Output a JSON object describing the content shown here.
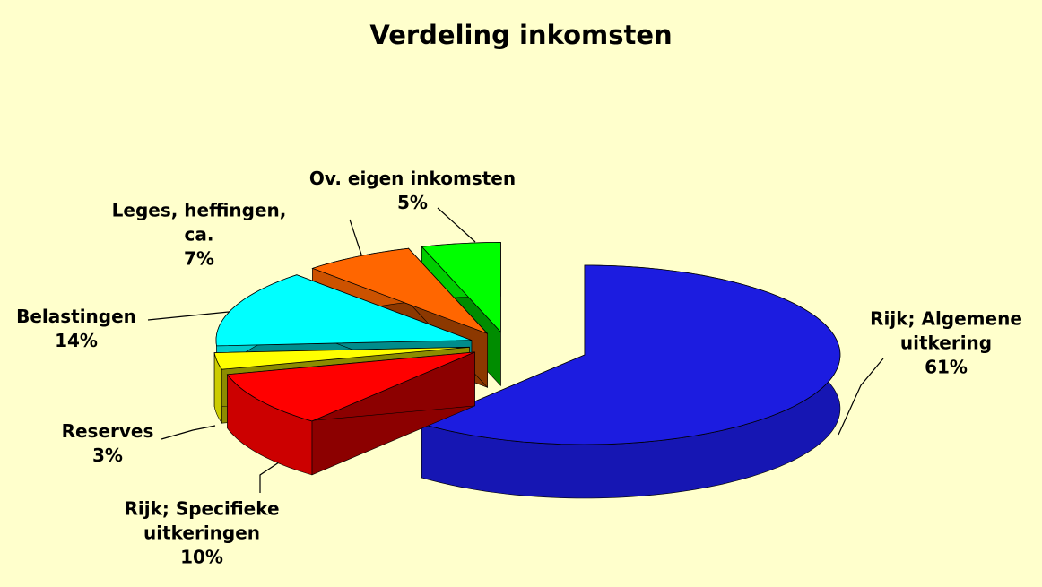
{
  "chart_data": {
    "type": "pie",
    "title": "Verdeling inkomsten",
    "categories": [
      "Rijk; Algemene uitkering",
      "Rijk; Specifieke uitkeringen",
      "Reserves",
      "Belastingen",
      "Leges, heffingen, ca.",
      "Ov. eigen inkomsten"
    ],
    "values": [
      61,
      10,
      3,
      14,
      7,
      5
    ],
    "value_labels": [
      "61%",
      "10%",
      "3%",
      "14%",
      "7%",
      "5%"
    ],
    "colors": [
      "#1c1ce0",
      "#ff0000",
      "#ffff00",
      "#00ffff",
      "#ff6600",
      "#00ff00"
    ]
  }
}
